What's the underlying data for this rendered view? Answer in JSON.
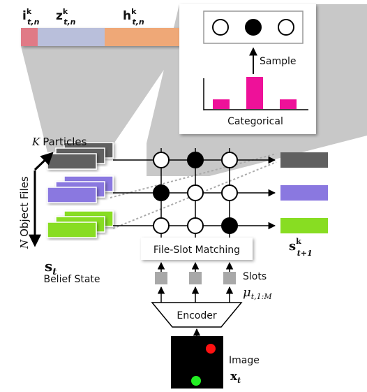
{
  "latent_bar": {
    "labels": [
      {
        "base": "i",
        "sup": "k",
        "sub": "t,n"
      },
      {
        "base": "z",
        "sup": "k",
        "sub": "t,n"
      },
      {
        "base": "h",
        "sup": "k",
        "sub": "t,n"
      }
    ],
    "colors": [
      "#e07a86",
      "#b9bfdb",
      "#efa877"
    ]
  },
  "inset": {
    "sample_label": "Sample",
    "categorical_label": "Categorical",
    "bar_color": "#ee1199",
    "category_values": [
      0.3,
      1.0,
      0.3
    ],
    "sampled_index": 1
  },
  "left_panel": {
    "k_particles": {
      "var": "K",
      "text": "Particles"
    },
    "n_object_files": {
      "var": "N",
      "text": "Object Files"
    },
    "belief_symbol": {
      "base": "s",
      "sub": "t"
    },
    "belief_label": "Belief State",
    "object_colors": [
      "#606060",
      "#8a78e0",
      "#88dd22"
    ]
  },
  "matching": {
    "label": "File-Slot Matching",
    "grid": [
      [
        0,
        1,
        0
      ],
      [
        1,
        0,
        0
      ],
      [
        0,
        0,
        1
      ]
    ]
  },
  "output": {
    "symbol": {
      "base": "s",
      "sup": "k",
      "sub": "t+1"
    },
    "colors": [
      "#606060",
      "#8a78e0",
      "#88dd22"
    ]
  },
  "slots": {
    "label": "Slots",
    "symbol": {
      "base": "μ",
      "sub": "t,1:M"
    }
  },
  "encoder": {
    "label": "Encoder"
  },
  "image": {
    "label": "Image",
    "symbol": {
      "base": "x",
      "sub": "t"
    },
    "dot_colors": [
      "#ff1111",
      "#22ee22"
    ]
  },
  "colors": {
    "gray_shadow": "#b8b8b8",
    "panel_bg": "#ffffff",
    "slot_fill": "#a8a8a8"
  }
}
